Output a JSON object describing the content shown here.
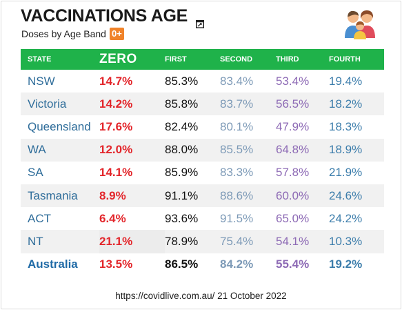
{
  "header": {
    "title": "VACCINATIONS AGE",
    "subtitle": "Doses by Age Band",
    "badge": "0+",
    "expand_icon": "expand-window-icon",
    "family_icon": "family-icon"
  },
  "table": {
    "columns": [
      "STATE",
      "ZERO",
      "FIRST",
      "SECOND",
      "THIRD",
      "FOURTH"
    ],
    "rows": [
      {
        "state": "NSW",
        "zero": "14.7%",
        "first": "85.3%",
        "second": "83.4%",
        "third": "53.4%",
        "fourth": "19.4%"
      },
      {
        "state": "Victoria",
        "zero": "14.2%",
        "first": "85.8%",
        "second": "83.7%",
        "third": "56.5%",
        "fourth": "18.2%"
      },
      {
        "state": "Queensland",
        "zero": "17.6%",
        "first": "82.4%",
        "second": "80.1%",
        "third": "47.9%",
        "fourth": "18.3%"
      },
      {
        "state": "WA",
        "zero": "12.0%",
        "first": "88.0%",
        "second": "85.5%",
        "third": "64.8%",
        "fourth": "18.9%"
      },
      {
        "state": "SA",
        "zero": "14.1%",
        "first": "85.9%",
        "second": "83.3%",
        "third": "57.8%",
        "fourth": "21.9%"
      },
      {
        "state": "Tasmania",
        "zero": "8.9%",
        "first": "91.1%",
        "second": "88.6%",
        "third": "60.0%",
        "fourth": "24.6%"
      },
      {
        "state": "ACT",
        "zero": "6.4%",
        "first": "93.6%",
        "second": "91.5%",
        "third": "65.0%",
        "fourth": "24.2%"
      },
      {
        "state": "NT",
        "zero": "21.1%",
        "first": "78.9%",
        "second": "75.4%",
        "third": "54.1%",
        "fourth": "10.3%"
      },
      {
        "state": "Australia",
        "zero": "13.5%",
        "first": "86.5%",
        "second": "84.2%",
        "third": "55.4%",
        "fourth": "19.2%"
      }
    ]
  },
  "footer": {
    "source": "https://covidlive.com.au/ 21 October 2022"
  },
  "colors": {
    "header_green": "#1fb24a",
    "zero_red": "#e3262b",
    "state_blue": "#2f6d9a",
    "badge_orange": "#f0832a"
  }
}
